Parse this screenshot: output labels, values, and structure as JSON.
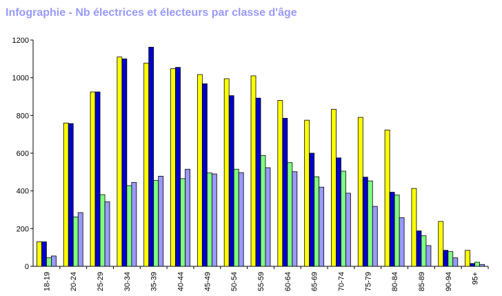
{
  "chart_data": {
    "type": "bar",
    "title": "Infographie - Nb électrices et électeurs par classe d'âge",
    "xlabel": "",
    "ylabel": "",
    "ylim": [
      0,
      1200
    ],
    "yticks": [
      0,
      200,
      400,
      600,
      800,
      1000,
      1200
    ],
    "grid": false,
    "categories": [
      "18-19",
      "20-24",
      "25-29",
      "30-34",
      "35-39",
      "40-44",
      "45-49",
      "50-54",
      "55-59",
      "60-64",
      "65-69",
      "70-74",
      "75-79",
      "80-84",
      "85-89",
      "90-94",
      "95+"
    ],
    "series": [
      {
        "color": "#ffff00",
        "values": [
          130,
          760,
          925,
          1110,
          1078,
          1048,
          1017,
          995,
          1010,
          880,
          775,
          833,
          790,
          723,
          413,
          238,
          85
        ]
      },
      {
        "color": "#0000cc",
        "values": [
          130,
          757,
          925,
          1100,
          1162,
          1055,
          968,
          905,
          892,
          785,
          600,
          575,
          473,
          393,
          188,
          85,
          15
        ]
      },
      {
        "color": "#80ff80",
        "values": [
          45,
          262,
          380,
          428,
          455,
          465,
          495,
          515,
          588,
          550,
          475,
          505,
          453,
          378,
          162,
          78,
          22
        ]
      },
      {
        "color": "#9999ff",
        "values": [
          55,
          285,
          342,
          445,
          478,
          515,
          490,
          497,
          523,
          502,
          420,
          388,
          318,
          258,
          110,
          45,
          10
        ]
      }
    ]
  }
}
